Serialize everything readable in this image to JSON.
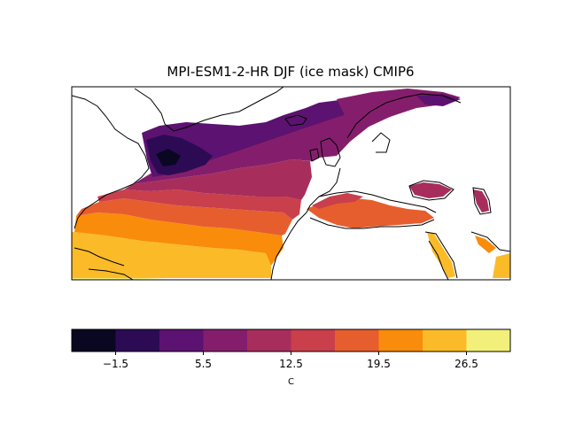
{
  "title": "MPI-ESM1-2-HR DJF (ice mask) CMIP6",
  "colorbar": {
    "label": "C",
    "colors": [
      "#0a0722",
      "#2c0b54",
      "#5c1270",
      "#841e6c",
      "#a72e5c",
      "#c93f4b",
      "#e65e2e",
      "#f98c0a",
      "#fbbb28",
      "#f2f07a"
    ],
    "boundaries": [
      -5,
      -1.5,
      2,
      5.5,
      9,
      12.5,
      16,
      19.5,
      23,
      26.5,
      30
    ],
    "ticks": [
      {
        "value": -1.5,
        "label": "−1.5"
      },
      {
        "value": 5.5,
        "label": "5.5"
      },
      {
        "value": 12.5,
        "label": "12.5"
      },
      {
        "value": 19.5,
        "label": "19.5"
      },
      {
        "value": 26.5,
        "label": "26.5"
      }
    ]
  }
}
